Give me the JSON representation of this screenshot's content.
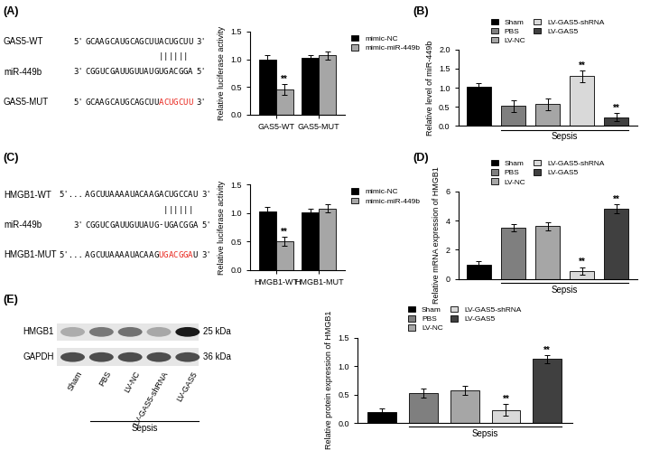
{
  "panel_labels": [
    "(A)",
    "(B)",
    "(C)",
    "(D)",
    "(E)"
  ],
  "sequences": [
    {
      "rows": [
        {
          "label": "GAS5-WT",
          "left": "5'",
          "seq": "GCAAGCAUGCAGCUUACUGCUU",
          "right": "3'"
        },
        {
          "label": "miR-449b",
          "left": "3'",
          "seq": "CGGUCGAUUGUUAUGUGACGGA",
          "right": "5'"
        },
        {
          "label": "GAS5-MUT",
          "left": "5'",
          "seq": "GCAAGCAUGCAGCUU",
          "mutated": "ACUGCUU",
          "right": "3'"
        }
      ],
      "pairing": "               ||||||",
      "mutated_color": "#e8231a"
    },
    {
      "rows": [
        {
          "label": "HMGB1-WT",
          "left": "5'...",
          "seq": "AGCUUAAAAUACAAGACUGCCAU",
          "right": "3'"
        },
        {
          "label": "miR-449b",
          "left": "3'",
          "seq": "CGGUCGAUUGUUAUG-UGACGGA",
          "right": "5'"
        },
        {
          "label": "HMGB1-MUT",
          "left": "5'...",
          "seq": "AGCUUAAAAUACAAG",
          "mutated": "UGACGGA",
          "after": "U",
          "right": "3'"
        }
      ],
      "pairing": "                ||||||",
      "mutated_color": "#e8231a"
    }
  ],
  "blot": {
    "rows": [
      {
        "label": "HMGB1",
        "size": "25 kDa"
      },
      {
        "label": "GAPDH",
        "size": "36 kDa"
      }
    ],
    "lanes": [
      "Sham",
      "PBS",
      "LV-NC",
      "LV-GAS5-shRNA",
      "LV-GAS5"
    ],
    "group_label": {
      "text": "Sepsis",
      "from": 1,
      "to": 4
    }
  },
  "chart_data": [
    {
      "type": "bar",
      "categories": [
        "GAS5-WT",
        "GAS5-MUT"
      ],
      "series": [
        {
          "name": "mimic-NC",
          "color": "#000000",
          "values": [
            1.0,
            1.02
          ],
          "errors": [
            0.07,
            0.06
          ]
        },
        {
          "name": "mimic-miR-449b",
          "color": "#a6a6a6",
          "values": [
            0.45,
            1.07
          ],
          "errors": [
            0.1,
            0.07
          ]
        }
      ],
      "y_label": "Relative luciferase activity",
      "ylim": [
        0,
        1.5
      ],
      "yticks": [
        {
          "value": 0,
          "label": "0.0"
        },
        0.5,
        {
          "value": 1,
          "label": "1.0"
        },
        1.5
      ],
      "legend": "right",
      "annotations": [
        {
          "series": 1,
          "index": 0,
          "text": "**"
        }
      ]
    },
    {
      "type": "bar",
      "categories": [
        "Sham",
        "PBS",
        "LV-NC",
        "LV-GAS5-shRNA",
        "LV-GAS5"
      ],
      "colors": [
        "#000000",
        "#7f7f7f",
        "#a6a6a6",
        "#d9d9d9",
        "#404040"
      ],
      "values": [
        1.03,
        0.52,
        0.57,
        1.3,
        0.23
      ],
      "errors": [
        0.08,
        0.15,
        0.15,
        0.15,
        0.1
      ],
      "y_label": "Relative level of miR-449b",
      "ylim": [
        0,
        2
      ],
      "yticks": [
        {
          "value": 0,
          "label": "0.0"
        },
        0.5,
        {
          "value": 1,
          "label": "1.0"
        },
        1.5,
        {
          "value": 2,
          "label": "2.0"
        }
      ],
      "legend": "above",
      "tick_labels": "y",
      "group_label": {
        "text": "Sepsis",
        "from": 1,
        "to": 4
      },
      "annotations": [
        {
          "index": 3,
          "text": "**"
        },
        {
          "index": 4,
          "text": "**"
        }
      ]
    },
    {
      "type": "bar",
      "categories": [
        "HMGB1-WT",
        "HMGB1-MUT"
      ],
      "series": [
        {
          "name": "mimic-NC",
          "color": "#000000",
          "values": [
            1.03,
            1.01
          ],
          "errors": [
            0.07,
            0.07
          ]
        },
        {
          "name": "mimic-miR-449b",
          "color": "#a6a6a6",
          "values": [
            0.5,
            1.08
          ],
          "errors": [
            0.08,
            0.07
          ]
        }
      ],
      "y_label": "Relative luciferase activity",
      "ylim": [
        0,
        1.5
      ],
      "yticks": [
        {
          "value": 0,
          "label": "0.0"
        },
        0.5,
        {
          "value": 1,
          "label": "1.0"
        },
        1.5
      ],
      "legend": "right",
      "annotations": [
        {
          "series": 1,
          "index": 0,
          "text": "**"
        }
      ]
    },
    {
      "type": "bar",
      "categories": [
        "Sham",
        "PBS",
        "LV-NC",
        "LV-GAS5-shRNA",
        "LV-GAS5"
      ],
      "colors": [
        "#000000",
        "#7f7f7f",
        "#a6a6a6",
        "#d9d9d9",
        "#404040"
      ],
      "values": [
        1.0,
        3.5,
        3.6,
        0.55,
        4.8
      ],
      "errors": [
        0.2,
        0.25,
        0.25,
        0.25,
        0.3
      ],
      "y_label": "Relative mRNA expression of HMGB1",
      "ylim": [
        0,
        6
      ],
      "yticks": [
        0,
        2,
        4,
        6
      ],
      "legend": "above",
      "tick_labels": "y",
      "group_label": {
        "text": "Sepsis",
        "from": 1,
        "to": 4
      },
      "annotations": [
        {
          "index": 3,
          "text": "**"
        },
        {
          "index": 4,
          "text": "**"
        }
      ]
    },
    {
      "type": "bar",
      "categories": [
        "Sham",
        "PBS",
        "LV-NC",
        "LV-GAS5-shRNA",
        "LV-GAS5"
      ],
      "colors": [
        "#000000",
        "#7f7f7f",
        "#a6a6a6",
        "#d9d9d9",
        "#404040"
      ],
      "values": [
        0.2,
        0.53,
        0.57,
        0.23,
        1.12
      ],
      "errors": [
        0.06,
        0.08,
        0.08,
        0.1,
        0.07
      ],
      "y_label": "Relative protein expression of HMGB1",
      "ylim": [
        0,
        1.5
      ],
      "yticks": [
        {
          "value": 0,
          "label": "0.0"
        },
        0.5,
        {
          "value": 1,
          "label": "1.0"
        },
        1.5
      ],
      "legend": "above",
      "tick_labels": "y",
      "group_label": {
        "text": "Sepsis",
        "from": 1,
        "to": 4
      },
      "annotations": [
        {
          "index": 3,
          "text": "**"
        },
        {
          "index": 4,
          "text": "**"
        }
      ]
    }
  ]
}
